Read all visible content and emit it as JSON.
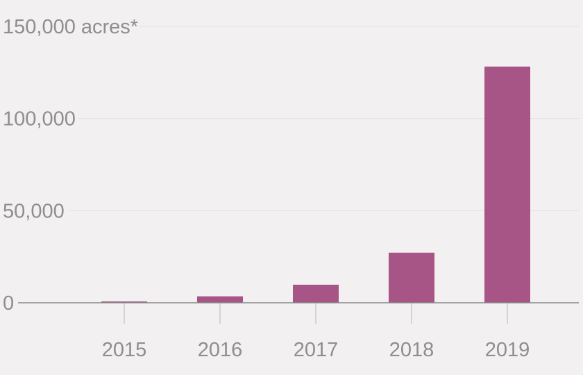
{
  "chart_data": {
    "type": "bar",
    "categories": [
      "2015",
      "2016",
      "2017",
      "2018",
      "2019"
    ],
    "values": [
      700,
      3500,
      9800,
      27200,
      128200
    ],
    "ylim": [
      0,
      150000
    ],
    "yticks": [
      0,
      50000,
      100000,
      150000
    ],
    "ytick_labels": [
      "0",
      "50,000",
      "100,000",
      "150,000 acres*"
    ],
    "grid": true,
    "legend": "none",
    "colors": {
      "bar": "#a65586",
      "background": "#f2f0f1",
      "grid": "#e2e0e1",
      "axis": "#8a8889",
      "text": "#8f8d8e"
    }
  }
}
